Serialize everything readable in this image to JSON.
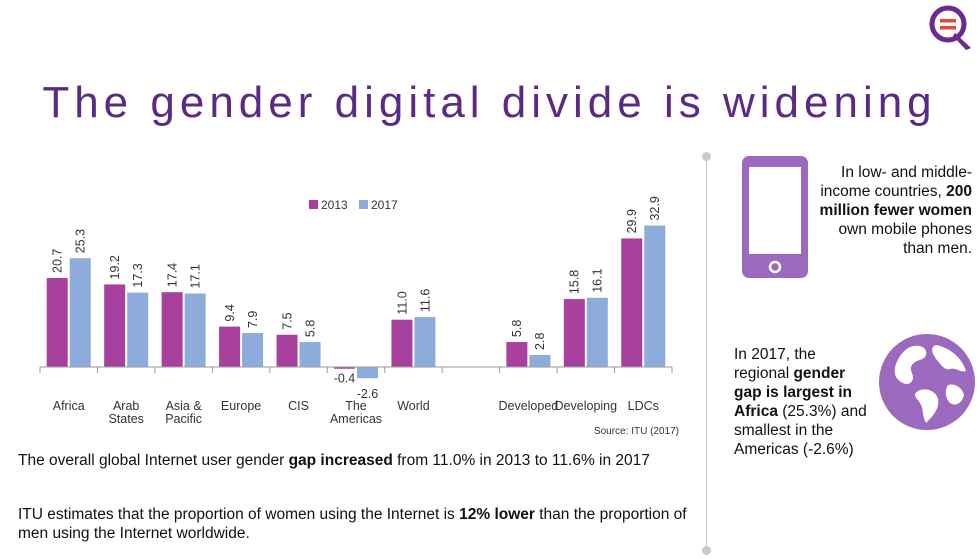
{
  "title": "The gender digital divide is widening",
  "logo": {
    "icon": "equality-search-logo-icon",
    "accent": "#6b2a8c",
    "mark": "#e8453c"
  },
  "chart_data": {
    "type": "bar",
    "categories": [
      [
        "Africa"
      ],
      [
        "Arab",
        "States"
      ],
      [
        "Asia &",
        "Pacific"
      ],
      [
        "Europe"
      ],
      [
        "CIS"
      ],
      [
        "The",
        "Americas"
      ],
      [
        "World"
      ],
      [],
      [
        "Developed"
      ],
      [
        "Developing"
      ],
      [
        "LDCs"
      ]
    ],
    "series": [
      {
        "name": "2013",
        "color": "#a8409d",
        "values": [
          20.7,
          19.2,
          17.4,
          9.4,
          7.5,
          -0.4,
          11.0,
          null,
          5.8,
          15.8,
          29.9
        ],
        "labels": [
          "20.7",
          "19.2",
          "17.4",
          "9.4",
          "7.5",
          "-0.4",
          "11.0",
          null,
          "5.8",
          "15.8",
          "29.9"
        ]
      },
      {
        "name": "2017",
        "color": "#8eacdb",
        "values": [
          25.3,
          17.3,
          17.1,
          7.9,
          5.8,
          -2.6,
          11.6,
          null,
          2.8,
          16.1,
          32.9
        ],
        "labels": [
          "25.3",
          "17.3",
          "17.1",
          "7.9",
          "5.8",
          "-2.6",
          "11.6",
          null,
          "2.8",
          "16.1",
          "32.9"
        ]
      }
    ],
    "legend": [
      "2013",
      "2017"
    ],
    "legend_position": "top-center",
    "ylim": [
      -3,
      34
    ],
    "grid": false,
    "source": "Source: ITU (2017)"
  },
  "paragraphs": {
    "p1": {
      "pre": "The overall global Internet user gender ",
      "bold": "gap increased",
      "post": " from 11.0% in 2013 to 11.6% in 2017"
    },
    "p2": {
      "pre": "ITU estimates that the proportion of women using the Internet is ",
      "bold": "12% lower",
      "post": " than the proportion of men using the Internet worldwide."
    }
  },
  "side": {
    "mobile": {
      "pre": "In low- and middle-income countries, ",
      "bold": "200 million fewer women",
      "post": " own mobile phones than men.",
      "icon": "mobile-phone-icon"
    },
    "africa": {
      "pre": "In 2017, the regional ",
      "bold": "gender gap is largest in Africa",
      "post": " (25.3%) and smallest in the Americas (-2.6%)",
      "icon": "globe-icon"
    }
  },
  "colors": {
    "title": "#5b2a86",
    "icon_purple": "#9b6abf",
    "divider": "#c9c9c9"
  }
}
